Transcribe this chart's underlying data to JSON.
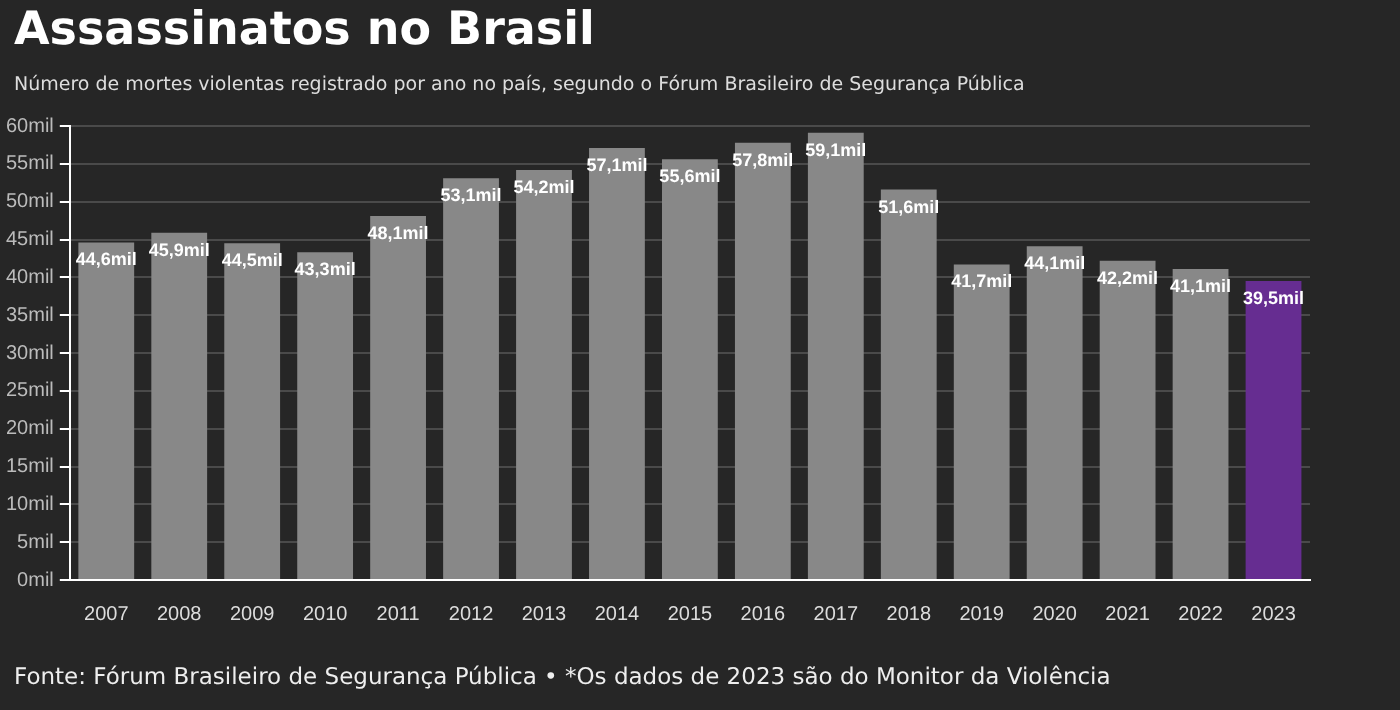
{
  "chart_data": {
    "type": "bar",
    "title": "Assassinatos no Brasil",
    "subtitle": "Número de mortes violentas registrado por ano no país, segundo o Fórum Brasileiro de Segurança Pública",
    "categories": [
      "2007",
      "2008",
      "2009",
      "2010",
      "2011",
      "2012",
      "2013",
      "2014",
      "2015",
      "2016",
      "2017",
      "2018",
      "2019",
      "2020",
      "2021",
      "2022",
      "2023"
    ],
    "values": [
      44.6,
      45.9,
      44.5,
      43.3,
      48.1,
      53.1,
      54.2,
      57.1,
      55.6,
      57.8,
      59.1,
      51.6,
      41.7,
      44.1,
      42.2,
      41.1,
      39.5
    ],
    "value_labels": [
      "44,6mil",
      "45,9mil",
      "44,5mil",
      "43,3mil",
      "48,1mil",
      "53,1mil",
      "54,2mil",
      "57,1mil",
      "55,6mil",
      "57,8mil",
      "59,1mil",
      "51,6mil",
      "41,7mil",
      "44,1mil",
      "42,2mil",
      "41,1mil",
      "39,5mil"
    ],
    "colors": [
      "#888888",
      "#888888",
      "#888888",
      "#888888",
      "#888888",
      "#888888",
      "#888888",
      "#888888",
      "#888888",
      "#888888",
      "#888888",
      "#888888",
      "#888888",
      "#888888",
      "#888888",
      "#888888",
      "#662d91"
    ],
    "ylim": [
      0,
      60
    ],
    "yticks": [
      {
        "value": 0,
        "label": "0mil"
      },
      {
        "value": 5,
        "label": "5mil"
      },
      {
        "value": 10,
        "label": "10mil"
      },
      {
        "value": 15,
        "label": "15mil"
      },
      {
        "value": 20,
        "label": "20mil"
      },
      {
        "value": 25,
        "label": "25mil"
      },
      {
        "value": 30,
        "label": "30mil"
      },
      {
        "value": 35,
        "label": "35mil"
      },
      {
        "value": 40,
        "label": "40mil"
      },
      {
        "value": 45,
        "label": "45mil"
      },
      {
        "value": 50,
        "label": "50mil"
      },
      {
        "value": 55,
        "label": "55mil"
      },
      {
        "value": 60,
        "label": "60mil"
      }
    ],
    "grid": "y",
    "legend": false,
    "annotations": [
      "Fonte: Fórum Brasileiro de Segurança Pública • *Os dados de 2023 são do Monitor da Violência"
    ]
  }
}
